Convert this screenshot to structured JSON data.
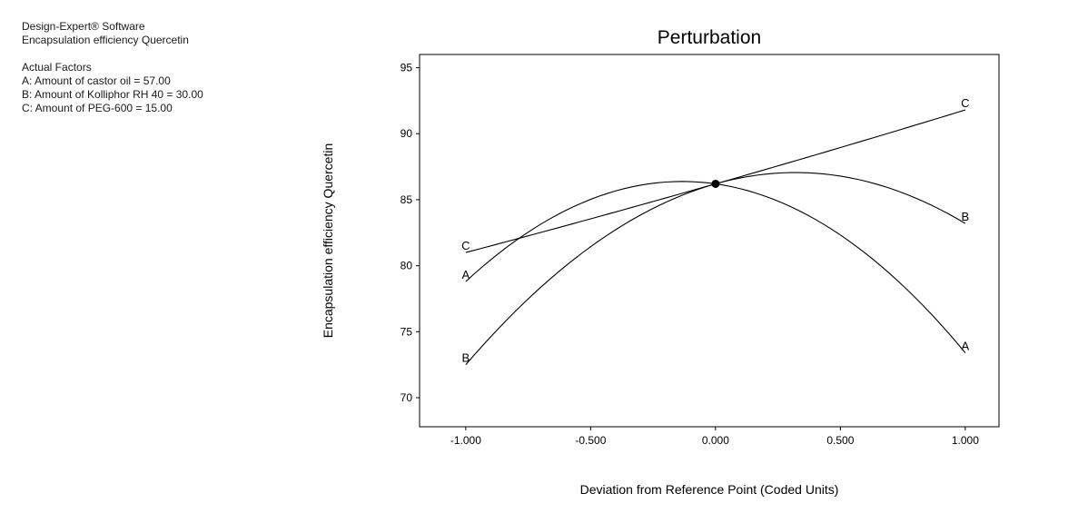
{
  "info_panel": {
    "software": "Design-Expert® Software",
    "response": "Encapsulation efficiency Quercetin",
    "actual_factors_heading": "Actual Factors",
    "factors": [
      "A: Amount of castor oil = 57.00",
      "B: Amount of Kolliphor RH 40 = 30.00",
      "C: Amount of PEG-600 = 15.00"
    ]
  },
  "chart_data": {
    "type": "line",
    "title": "Perturbation",
    "xlabel": "Deviation from Reference Point (Coded Units)",
    "ylabel": "Encapsulation efficiency Quercetin",
    "xlim": [
      -1.185,
      1.135
    ],
    "ylim": [
      67.8,
      96.0
    ],
    "xticks": [
      -1.0,
      -0.5,
      0.0,
      0.5,
      1.0
    ],
    "xtick_labels": [
      "-1.000",
      "-0.500",
      "0.000",
      "0.500",
      "1.000"
    ],
    "yticks": [
      70,
      75,
      80,
      85,
      90,
      95
    ],
    "ytick_labels": [
      "70",
      "75",
      "80",
      "85",
      "90",
      "95"
    ],
    "grid": false,
    "legend": "curve-end-labels",
    "reference_point": {
      "x": 0.0,
      "y": 86.2
    },
    "series": [
      {
        "name": "A",
        "x": [
          -1,
          0,
          1
        ],
        "y": [
          78.8,
          86.2,
          73.4
        ],
        "color": "#000000"
      },
      {
        "name": "B",
        "x": [
          -1,
          0,
          1
        ],
        "y": [
          72.5,
          86.2,
          83.2
        ],
        "color": "#000000"
      },
      {
        "name": "C",
        "x": [
          -1,
          0,
          1
        ],
        "y": [
          81.0,
          86.2,
          91.8
        ],
        "color": "#000000"
      }
    ]
  },
  "colors": {
    "background": "#ffffff",
    "foreground": "#000000"
  }
}
